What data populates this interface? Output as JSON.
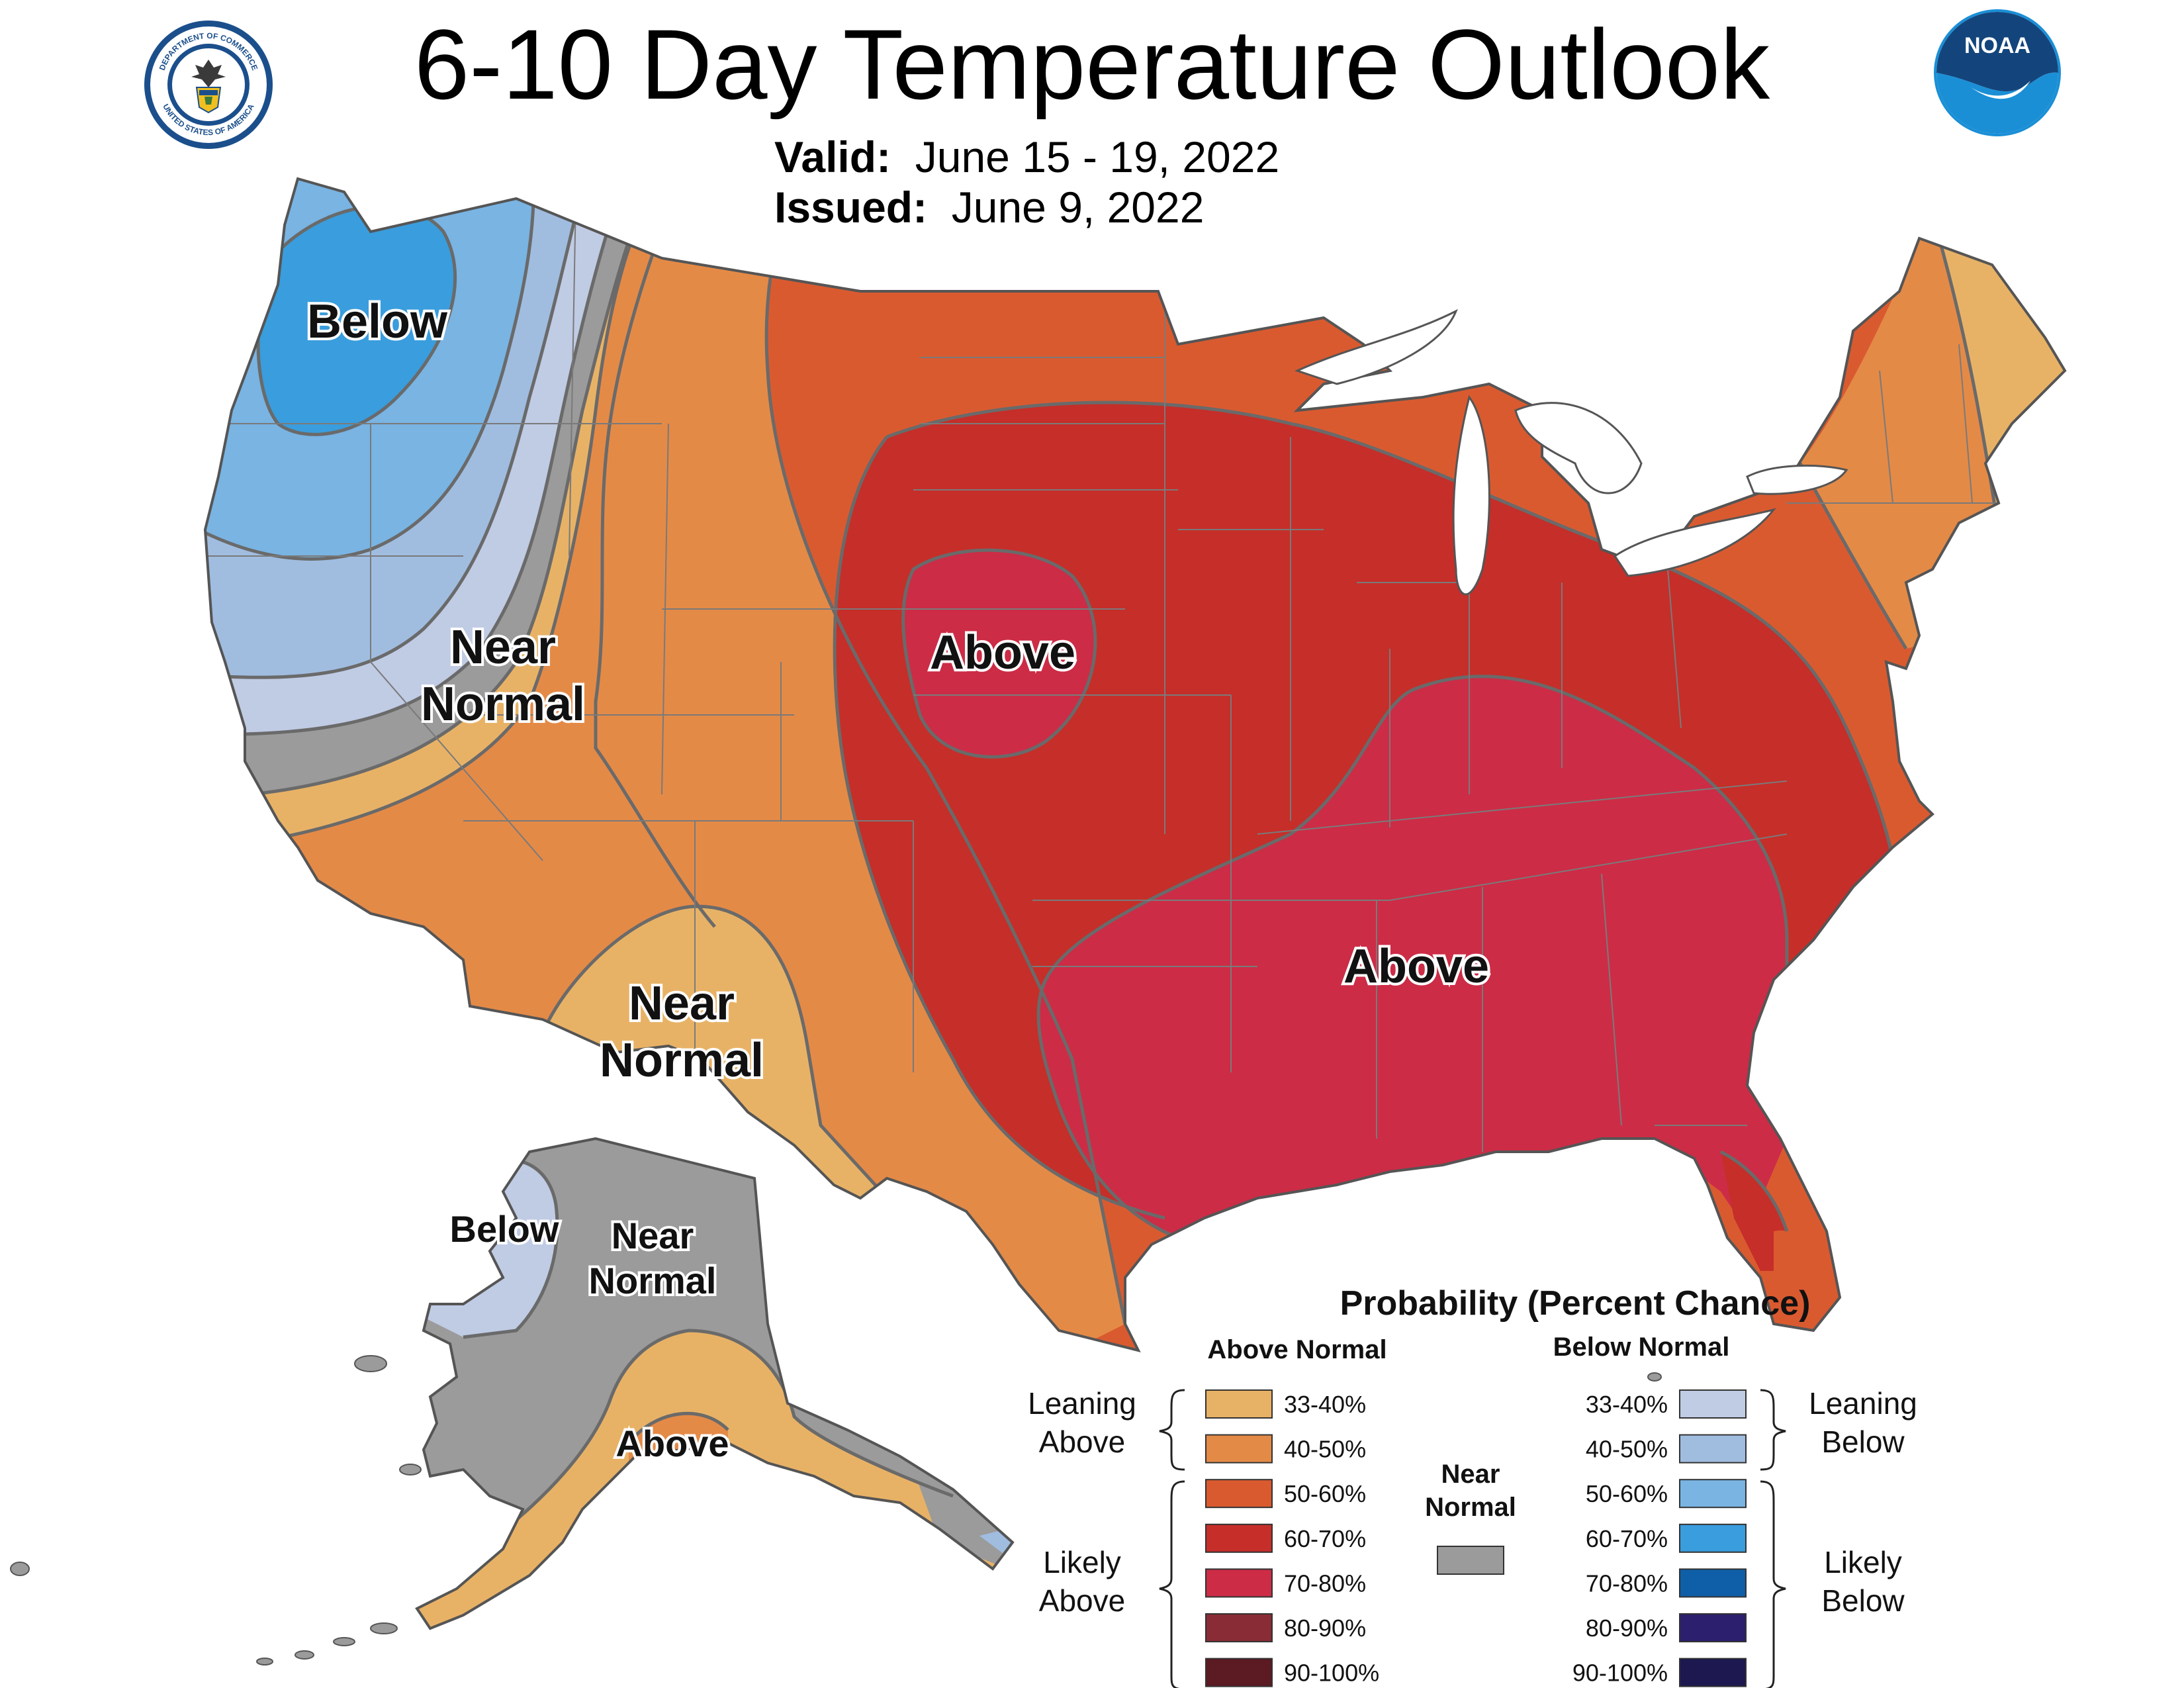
{
  "header": {
    "title": "6-10 Day Temperature Outlook",
    "valid_label": "Valid:",
    "valid_value": "June 15 - 19, 2022",
    "issued_label": "Issued:",
    "issued_value": "June 9, 2022"
  },
  "logos": {
    "commerce_ring_top": "DEPARTMENT OF COMMERCE",
    "commerce_ring_bottom": "UNITED STATES OF AMERICA",
    "noaa_text": "NOAA"
  },
  "map_labels": {
    "nw_below": "Below",
    "nw_near_normal_1": "Near",
    "nw_near_normal_2": "Normal",
    "plains_above": "Above",
    "southeast_above": "Above",
    "sw_near_normal_1": "Near",
    "sw_near_normal_2": "Normal",
    "ak_below": "Below",
    "ak_near_normal_1": "Near",
    "ak_near_normal_2": "Normal",
    "ak_above": "Above"
  },
  "legend": {
    "title": "Probability (Percent Chance)",
    "above_header": "Above Normal",
    "below_header": "Below Normal",
    "leaning_above_1": "Leaning",
    "leaning_above_2": "Above",
    "likely_above_1": "Likely",
    "likely_above_2": "Above",
    "leaning_below_1": "Leaning",
    "leaning_below_2": "Below",
    "likely_below_1": "Likely",
    "likely_below_2": "Below",
    "near_normal_1": "Near",
    "near_normal_2": "Normal",
    "near_normal_color": "#9b9b9b",
    "above_items": [
      {
        "label": "33-40%",
        "color": "#e8b266"
      },
      {
        "label": "40-50%",
        "color": "#e48a47"
      },
      {
        "label": "50-60%",
        "color": "#da5a30"
      },
      {
        "label": "60-70%",
        "color": "#c62e29"
      },
      {
        "label": "70-80%",
        "color": "#cc2c46"
      },
      {
        "label": "80-90%",
        "color": "#8a2c35"
      },
      {
        "label": "90-100%",
        "color": "#5c1a22"
      }
    ],
    "below_items": [
      {
        "label": "33-40%",
        "color": "#c0cbe4"
      },
      {
        "label": "40-50%",
        "color": "#a0bde0"
      },
      {
        "label": "50-60%",
        "color": "#79b4e3"
      },
      {
        "label": "60-70%",
        "color": "#3a9ddd"
      },
      {
        "label": "70-80%",
        "color": "#0e5fa8"
      },
      {
        "label": "80-90%",
        "color": "#2b1f6e"
      },
      {
        "label": "90-100%",
        "color": "#1d1850"
      }
    ]
  },
  "colors": {
    "above_33_40": "#e8b266",
    "above_40_50": "#e48a47",
    "above_50_60": "#da5a30",
    "above_60_70": "#c62e29",
    "above_70_80": "#cc2c46",
    "near_normal": "#9b9b9b",
    "below_33_40": "#c0cbe4",
    "below_40_50": "#a0bde0",
    "below_50_60": "#79b4e3",
    "below_60_70": "#3a9ddd",
    "boundary": "#6a6a6a",
    "noaa_blue": "#1a8fd6"
  }
}
